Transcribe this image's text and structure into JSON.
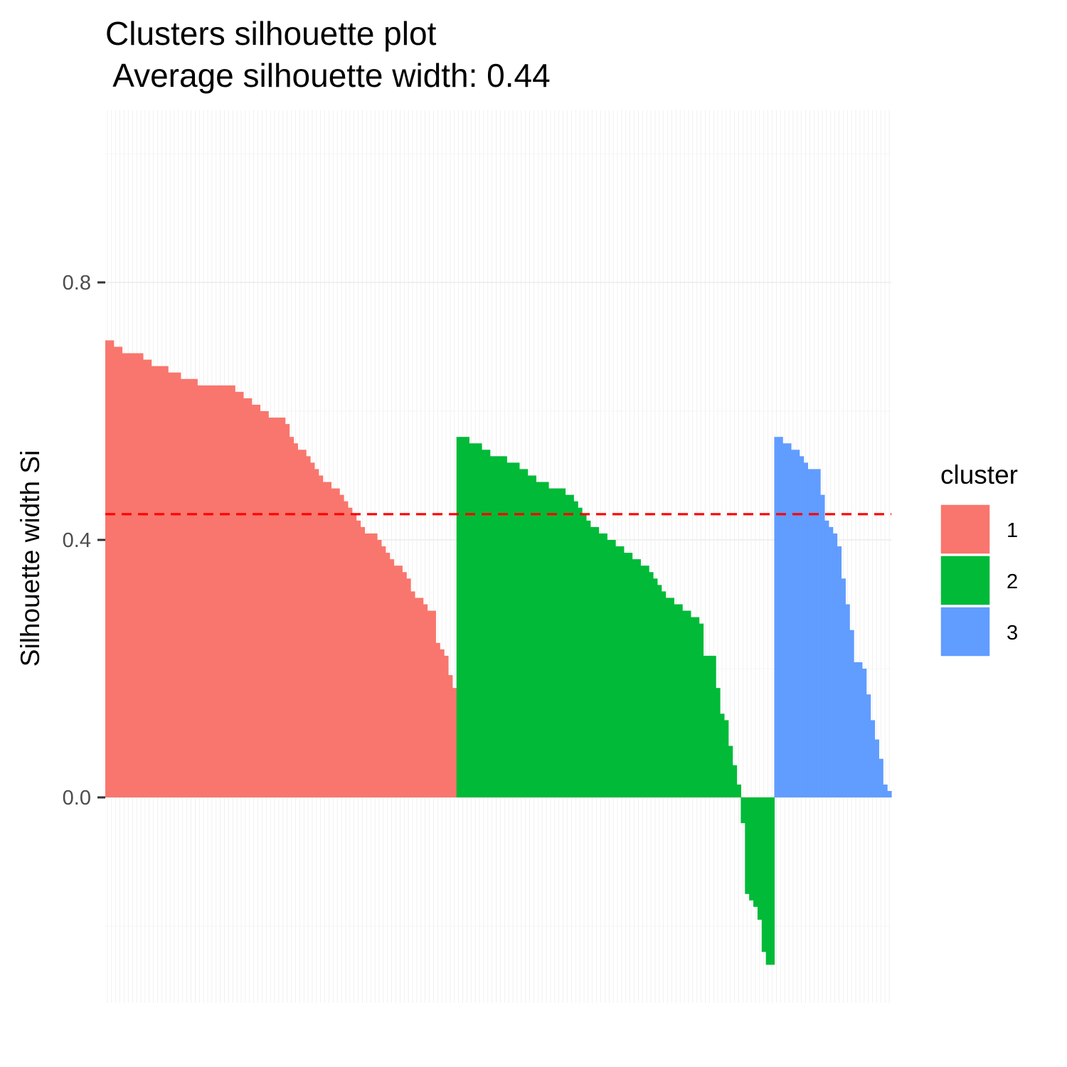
{
  "chart_data": {
    "type": "bar",
    "title": "Clusters silhouette plot",
    "subtitle": " Average silhouette width: 0.44",
    "xlabel": "",
    "ylabel": "Silhouette width Si",
    "ylim": [
      -0.32,
      1.07
    ],
    "y_ticks": [
      "0.0",
      "0.4",
      "0.8"
    ],
    "grid": true,
    "legend": {
      "title": "cluster",
      "position": "right"
    },
    "average_line": {
      "value": 0.44,
      "color": "#ff0000",
      "style": "dashed"
    },
    "series": [
      {
        "name": "1",
        "color": "#f8766d",
        "values": [
          0.71,
          0.71,
          0.7,
          0.7,
          0.69,
          0.69,
          0.69,
          0.69,
          0.69,
          0.68,
          0.68,
          0.67,
          0.67,
          0.67,
          0.67,
          0.66,
          0.66,
          0.66,
          0.65,
          0.65,
          0.65,
          0.65,
          0.64,
          0.64,
          0.64,
          0.64,
          0.64,
          0.64,
          0.64,
          0.64,
          0.64,
          0.63,
          0.63,
          0.62,
          0.62,
          0.61,
          0.61,
          0.6,
          0.6,
          0.59,
          0.59,
          0.59,
          0.59,
          0.58,
          0.56,
          0.55,
          0.54,
          0.54,
          0.53,
          0.52,
          0.51,
          0.5,
          0.49,
          0.49,
          0.48,
          0.48,
          0.47,
          0.46,
          0.45,
          0.44,
          0.43,
          0.42,
          0.41,
          0.41,
          0.41,
          0.4,
          0.39,
          0.38,
          0.37,
          0.36,
          0.36,
          0.35,
          0.34,
          0.32,
          0.31,
          0.31,
          0.3,
          0.29,
          0.29,
          0.24,
          0.23,
          0.22,
          0.19,
          0.17
        ]
      },
      {
        "name": "2",
        "color": "#00ba38",
        "values": [
          0.56,
          0.56,
          0.56,
          0.55,
          0.55,
          0.55,
          0.54,
          0.54,
          0.53,
          0.53,
          0.53,
          0.53,
          0.52,
          0.52,
          0.52,
          0.51,
          0.51,
          0.5,
          0.5,
          0.49,
          0.49,
          0.49,
          0.48,
          0.48,
          0.48,
          0.48,
          0.47,
          0.47,
          0.46,
          0.45,
          0.44,
          0.43,
          0.42,
          0.42,
          0.41,
          0.41,
          0.4,
          0.4,
          0.39,
          0.39,
          0.38,
          0.38,
          0.37,
          0.37,
          0.36,
          0.36,
          0.35,
          0.34,
          0.33,
          0.32,
          0.31,
          0.31,
          0.3,
          0.3,
          0.29,
          0.29,
          0.28,
          0.28,
          0.27,
          0.22,
          0.22,
          0.22,
          0.17,
          0.13,
          0.12,
          0.08,
          0.05,
          0.02,
          -0.04,
          -0.15,
          -0.16,
          -0.17,
          -0.19,
          -0.24,
          -0.26,
          -0.26
        ]
      },
      {
        "name": "3",
        "color": "#619cff",
        "values": [
          0.56,
          0.56,
          0.55,
          0.55,
          0.54,
          0.54,
          0.53,
          0.52,
          0.51,
          0.51,
          0.51,
          0.47,
          0.43,
          0.42,
          0.41,
          0.39,
          0.34,
          0.3,
          0.26,
          0.21,
          0.21,
          0.2,
          0.16,
          0.12,
          0.09,
          0.06,
          0.02,
          0.01
        ]
      }
    ]
  }
}
